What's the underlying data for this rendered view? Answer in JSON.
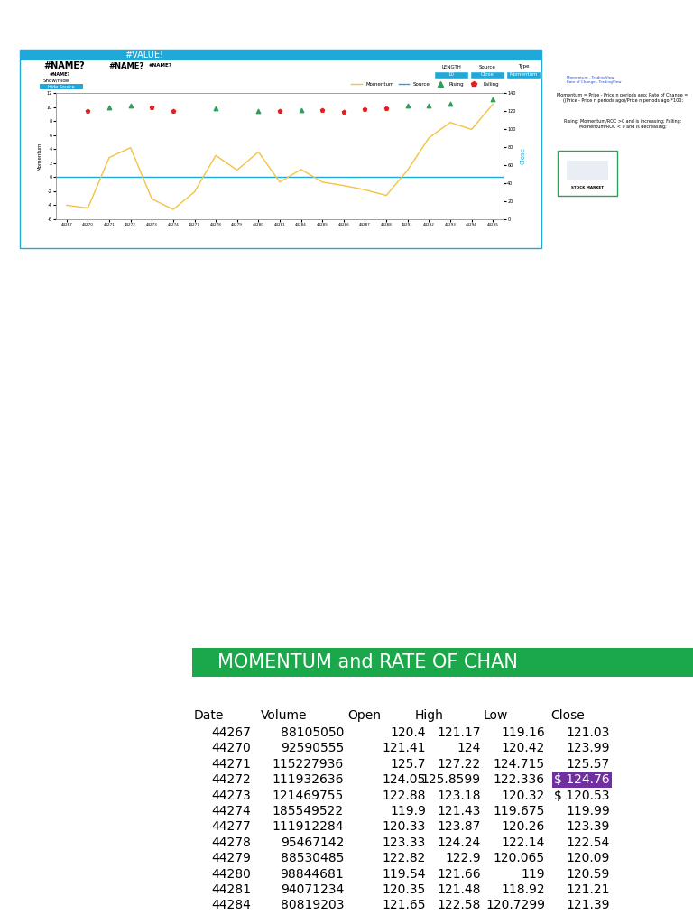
{
  "header": {
    "title": "#VALUE!",
    "name_1": "#NAME?",
    "name_2": "#NAME?",
    "name_3": "#NAME?",
    "name_4": "#NAME?",
    "show_hide": "Show/Hide",
    "button": "Hide Source",
    "settings": {
      "labels": [
        "LENGTH",
        "Source",
        "Type"
      ],
      "values": [
        10,
        "Close",
        "Momentum"
      ]
    }
  },
  "chart_data": {
    "type": "line",
    "categories": [
      "44267",
      "44270",
      "44271",
      "44272",
      "44273",
      "44274",
      "44277",
      "44278",
      "44279",
      "44280",
      "44281",
      "44284",
      "44285",
      "44286",
      "44287",
      "44288",
      "44291",
      "44292",
      "44293",
      "44294",
      "44295"
    ],
    "y_label": "Momentum",
    "y2_label": "Close",
    "ylim": [
      -6,
      12
    ],
    "yticks": [
      -6,
      -4,
      -2,
      0,
      2,
      4,
      6,
      8,
      10,
      12
    ],
    "y2lim": [
      0,
      140
    ],
    "y2ticks": [
      0,
      20,
      40,
      60,
      80,
      100,
      120,
      140
    ],
    "legend": "upper right",
    "series": [
      {
        "name": "Momentum",
        "type": "line",
        "color": "#f5c242",
        "line_style": "solid",
        "values": [
          -4,
          -4.4,
          2.8,
          4.2,
          -3.1,
          -4.6,
          -2.1,
          3.1,
          1.0,
          3.6,
          -0.7,
          1.1,
          -0.7,
          -1.2,
          -1.8,
          -2.6,
          1.0,
          5.6,
          7.8,
          6.8,
          10.4
        ]
      },
      {
        "name": "Source",
        "type": "line",
        "color": "#1fa8d8",
        "line_style": "solid",
        "axis": "y2",
        "values": [
          null,
          null,
          null,
          null,
          null,
          null,
          null,
          null,
          null,
          null,
          null,
          null,
          null,
          null,
          null,
          null,
          null,
          null,
          null,
          null,
          null
        ]
      },
      {
        "name": "Rising",
        "type": "scatter",
        "color": "#2e9e5b",
        "marker": "triangle",
        "axis": "y2",
        "values": [
          null,
          null,
          124,
          126,
          null,
          null,
          null,
          123,
          null,
          120,
          null,
          121,
          null,
          null,
          null,
          null,
          126,
          126,
          128,
          null,
          133
        ]
      },
      {
        "name": "Falling",
        "type": "scatter",
        "color": "#e02020",
        "marker": "pentagon",
        "axis": "y2",
        "values": [
          null,
          120,
          null,
          null,
          124,
          120,
          null,
          null,
          null,
          null,
          120,
          null,
          121,
          119,
          122,
          123,
          null,
          null,
          null,
          null,
          null
        ]
      }
    ]
  },
  "notes": {
    "links": [
      "Momentum - TradingView",
      "Rate of Change - TradingView"
    ],
    "formula": "Momentum = Price - Price n periods ago; Rate of Change = ((Price - Price n periods ago)/Price n periods ago)*100;",
    "rule": "Rising: Momentum/ROC >0 and is increasing; Falling: Momentum/ROC < 0 and is decreasing;",
    "logo": "STOCK MARKET"
  },
  "table": {
    "title": "MOMENTUM and RATE OF CHAN",
    "columns": [
      "Date",
      "Volume",
      "Open",
      "High",
      "Low",
      "Close"
    ],
    "rows": [
      [
        44267,
        88105050,
        120.4,
        121.17,
        119.16,
        121.03
      ],
      [
        44270,
        92590555,
        121.41,
        124,
        120.42,
        123.99
      ],
      [
        44271,
        115227936,
        125.7,
        127.22,
        124.715,
        125.57
      ],
      [
        44272,
        111932636,
        124.05,
        125.8599,
        122.336,
        "$ 124.76"
      ],
      [
        44273,
        121469755,
        122.88,
        123.18,
        120.32,
        "$ 120.53"
      ],
      [
        44274,
        185549522,
        119.9,
        121.43,
        119.675,
        119.99
      ],
      [
        44277,
        111912284,
        120.33,
        123.87,
        120.26,
        123.39
      ],
      [
        44278,
        95467142,
        123.33,
        124.24,
        122.14,
        122.54
      ],
      [
        44279,
        88530485,
        122.82,
        122.9,
        120.065,
        120.09
      ],
      [
        44280,
        98844681,
        119.54,
        121.66,
        119,
        120.59
      ],
      [
        44281,
        94071234,
        120.35,
        121.48,
        118.92,
        121.21
      ],
      [
        44284,
        80819203,
        121.65,
        122.58,
        120.7299,
        121.39
      ]
    ]
  }
}
